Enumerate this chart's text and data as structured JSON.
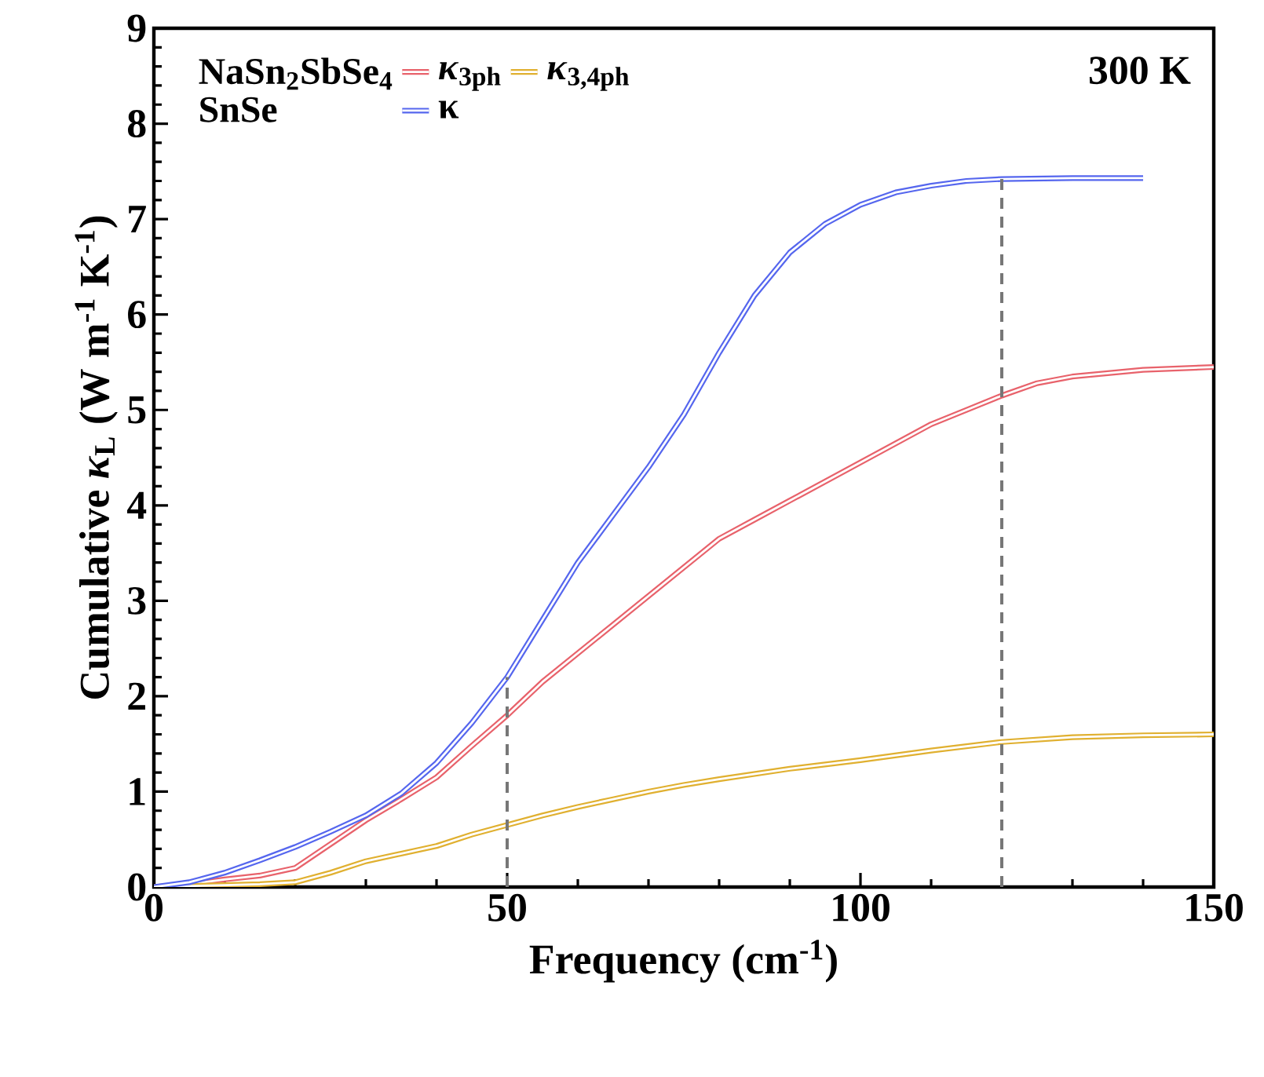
{
  "chart_data": {
    "type": "line",
    "xlabel": "Frequency (cm$^{-1}$)",
    "ylabel": "Cumulative *κ*$_{L}$ (W m$^{-1}$ K$^{-1}$)",
    "annotations": [
      "NaSn$_{2}$SbSe$_{4}$",
      "SnSe",
      "300 K"
    ],
    "xlim": [
      0,
      150
    ],
    "ylim": [
      0,
      9
    ],
    "xticks": [
      0,
      50,
      100,
      150
    ],
    "yticks": [
      0,
      1,
      2,
      3,
      4,
      5,
      6,
      7,
      8,
      9
    ],
    "legend": "top left",
    "grid": false,
    "marker": "none",
    "line_style": "solid",
    "ref_lines": [
      {
        "axis": "x",
        "value": 50,
        "color": "#777777",
        "line_style": "dashed"
      },
      {
        "axis": "x",
        "value": 120,
        "color": "#777777",
        "line_style": "dashed"
      }
    ],
    "series": [
      {
        "name": "*κ*$_{3ph}$",
        "color": "#e8626b",
        "x": [
          0,
          5,
          10,
          15,
          20,
          25,
          30,
          35,
          40,
          45,
          50,
          55,
          60,
          65,
          70,
          75,
          80,
          85,
          90,
          95,
          100,
          105,
          110,
          115,
          120,
          125,
          130,
          140,
          150
        ],
        "values": [
          0,
          0.03,
          0.08,
          0.12,
          0.2,
          0.45,
          0.7,
          0.92,
          1.15,
          1.48,
          1.8,
          2.15,
          2.45,
          2.75,
          3.05,
          3.35,
          3.65,
          3.85,
          4.05,
          4.25,
          4.45,
          4.65,
          4.85,
          5.0,
          5.15,
          5.28,
          5.35,
          5.42,
          5.45
        ]
      },
      {
        "name": "*κ*$_{3,4ph}$",
        "color": "#e0b030",
        "x": [
          0,
          10,
          15,
          20,
          25,
          30,
          35,
          40,
          45,
          50,
          55,
          60,
          65,
          70,
          75,
          80,
          90,
          100,
          110,
          120,
          130,
          140,
          150
        ],
        "values": [
          0,
          0.02,
          0.03,
          0.05,
          0.15,
          0.27,
          0.35,
          0.43,
          0.55,
          0.65,
          0.75,
          0.84,
          0.92,
          1.0,
          1.07,
          1.13,
          1.24,
          1.33,
          1.43,
          1.52,
          1.57,
          1.59,
          1.6
        ]
      },
      {
        "name": "κ",
        "color": "#5566ee",
        "x": [
          0,
          5,
          10,
          15,
          20,
          25,
          30,
          35,
          40,
          45,
          50,
          55,
          60,
          65,
          70,
          75,
          80,
          85,
          90,
          95,
          100,
          105,
          110,
          115,
          120,
          130,
          140
        ],
        "values": [
          0,
          0.05,
          0.15,
          0.28,
          0.42,
          0.58,
          0.75,
          0.98,
          1.3,
          1.72,
          2.2,
          2.8,
          3.4,
          3.9,
          4.4,
          4.95,
          5.6,
          6.2,
          6.65,
          6.95,
          7.15,
          7.28,
          7.35,
          7.4,
          7.42,
          7.43,
          7.43
        ]
      }
    ]
  }
}
